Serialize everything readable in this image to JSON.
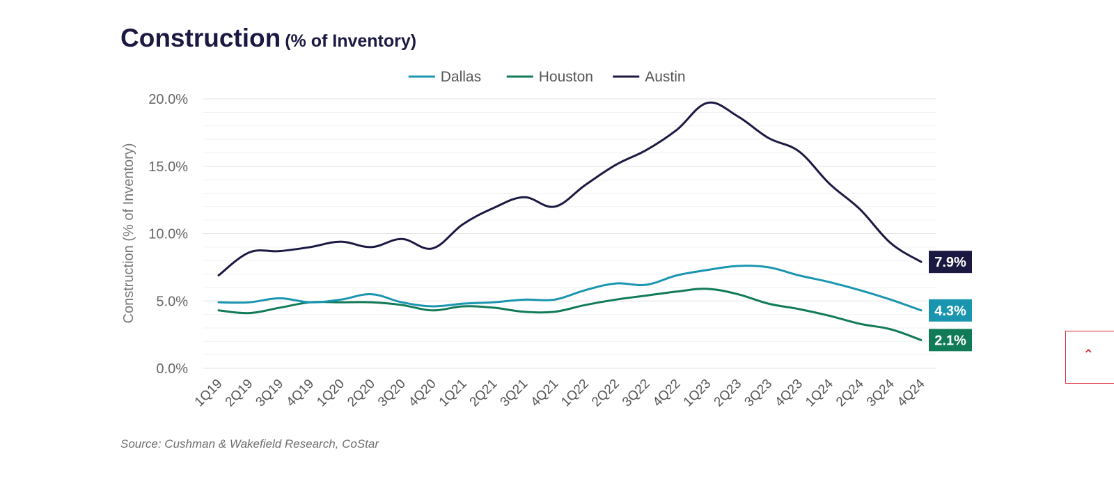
{
  "title": {
    "main": "Construction",
    "sub": "(% of Inventory)"
  },
  "source": "Source: Cushman & Wakefield Research, CoStar",
  "scroll_top_icon": "chevron-up-icon",
  "chart_data": {
    "type": "line",
    "ylabel": "Construction (% of Inventory)",
    "xlabel": "",
    "ylim": [
      0,
      20
    ],
    "yticks": [
      "0.0%",
      "5.0%",
      "10.0%",
      "15.0%",
      "20.0%"
    ],
    "grid": true,
    "legend_position": "top-center",
    "categories": [
      "1Q19",
      "2Q19",
      "3Q19",
      "4Q19",
      "1Q20",
      "2Q20",
      "3Q20",
      "4Q20",
      "1Q21",
      "2Q21",
      "3Q21",
      "4Q21",
      "1Q22",
      "2Q22",
      "3Q22",
      "4Q22",
      "1Q23",
      "2Q23",
      "3Q23",
      "4Q23",
      "1Q24",
      "2Q24",
      "3Q24",
      "4Q24"
    ],
    "series": [
      {
        "name": "Dallas",
        "color": "#1a95b0",
        "end_label": "4.3%",
        "values": [
          4.9,
          4.9,
          5.2,
          4.9,
          5.1,
          5.5,
          4.9,
          4.6,
          4.8,
          4.9,
          5.1,
          5.1,
          5.8,
          6.3,
          6.2,
          6.9,
          7.3,
          7.6,
          7.5,
          6.9,
          6.4,
          5.8,
          5.1,
          4.3
        ]
      },
      {
        "name": "Houston",
        "color": "#117a57",
        "end_label": "2.1%",
        "values": [
          4.3,
          4.1,
          4.5,
          4.9,
          4.9,
          4.9,
          4.7,
          4.3,
          4.6,
          4.5,
          4.2,
          4.2,
          4.7,
          5.1,
          5.4,
          5.7,
          5.9,
          5.5,
          4.8,
          4.4,
          3.9,
          3.3,
          2.9,
          2.1
        ]
      },
      {
        "name": "Austin",
        "color": "#1b1942",
        "end_label": "7.9%",
        "values": [
          6.9,
          8.6,
          8.7,
          9.0,
          9.4,
          9.0,
          9.6,
          8.9,
          10.7,
          11.9,
          12.7,
          12.0,
          13.6,
          15.1,
          16.2,
          17.7,
          19.7,
          18.7,
          17.1,
          16.1,
          13.7,
          11.8,
          9.3,
          7.9
        ]
      }
    ]
  }
}
